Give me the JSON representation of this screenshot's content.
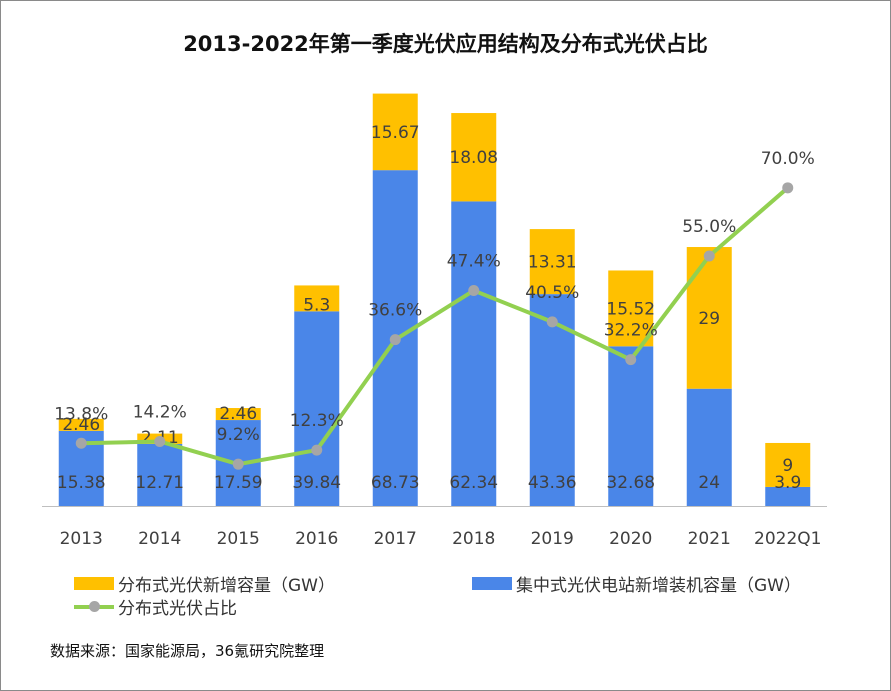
{
  "chart_data": {
    "type": "bar",
    "stacked": true,
    "title": "2013-2022年第一季度光伏应用结构及分布式光伏占比",
    "categories": [
      "2013",
      "2014",
      "2015",
      "2016",
      "2017",
      "2018",
      "2019",
      "2020",
      "2021",
      "2022Q1"
    ],
    "series": [
      {
        "name": "集中式光伏电站新增装机容量（GW）",
        "type": "bar",
        "color": "#4a86e8",
        "values": [
          15.38,
          12.71,
          17.59,
          39.84,
          68.73,
          62.34,
          43.36,
          32.68,
          24,
          3.9
        ],
        "labels": [
          "15.38",
          "12.71",
          "17.59",
          "39.84",
          "68.73",
          "62.34",
          "43.36",
          "32.68",
          "24",
          "3.9"
        ]
      },
      {
        "name": "分布式光伏新增容量（GW）",
        "type": "bar",
        "color": "#ffc000",
        "values": [
          2.46,
          2.11,
          2.46,
          5.3,
          15.67,
          18.08,
          13.31,
          15.52,
          29,
          9
        ],
        "labels": [
          "2.46",
          "2.11",
          "2.46",
          "5.3",
          "15.67",
          "18.08",
          "13.31",
          "15.52",
          "29",
          "9"
        ]
      },
      {
        "name": "分布式光伏占比",
        "type": "line",
        "color": "#92d050",
        "marker_color": "#a6a6a6",
        "unit": "%",
        "values": [
          13.8,
          14.2,
          9.2,
          12.3,
          36.6,
          47.4,
          40.5,
          32.2,
          55.0,
          70.0
        ],
        "labels": [
          "13.8%",
          "14.2%",
          "9.2%",
          "12.3%",
          "36.6%",
          "47.4%",
          "40.5%",
          "32.2%",
          "55.0%",
          "70.0%"
        ]
      }
    ],
    "bar_axis_range": [
      0,
      88
    ],
    "line_axis_range": [
      0,
      110
    ],
    "axes_visible": false,
    "grid": false,
    "legend_position": "bottom"
  },
  "legend": {
    "distributed_bar": "分布式光伏新增容量（GW）",
    "centralized_bar": "集中式光伏电站新增装机容量（GW）",
    "share_line": "分布式光伏占比"
  },
  "source": "数据来源：国家能源局，36氪研究院整理"
}
